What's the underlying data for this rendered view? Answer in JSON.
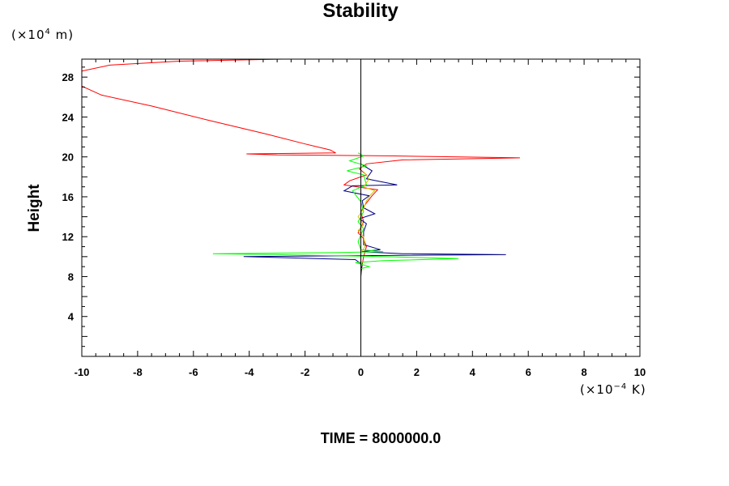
{
  "chart_data": {
    "type": "line",
    "title": "Stability",
    "ylabel": "Height",
    "y_unit_prefix": "(×10",
    "y_unit_exp": "4",
    "y_unit_suffix": " m)",
    "x_unit_prefix": "(×10",
    "x_unit_exp": "−4",
    "x_unit_suffix": " K)",
    "footer": "TIME = 8000000.0",
    "xlim": [
      -10,
      10
    ],
    "ylim": [
      0,
      29.8
    ],
    "x_ticks": [
      -10,
      -8,
      -6,
      -4,
      -2,
      0,
      2,
      4,
      6,
      8,
      10
    ],
    "y_ticks": [
      4,
      8,
      12,
      16,
      20,
      24,
      28
    ],
    "grid": false,
    "zero_line": true,
    "series": [
      {
        "color": "#ff0000",
        "points": [
          [
            0,
            6
          ],
          [
            0,
            8
          ],
          [
            0.05,
            9.2
          ],
          [
            0.1,
            10
          ],
          [
            0.2,
            11
          ],
          [
            0.1,
            11.8
          ],
          [
            -0.1,
            12.4
          ],
          [
            0.1,
            13.5
          ],
          [
            0,
            14.5
          ],
          [
            0.15,
            15.2
          ],
          [
            0.4,
            16.1
          ],
          [
            0.6,
            16.7
          ],
          [
            0.1,
            16.9
          ],
          [
            -0.6,
            17.2
          ],
          [
            -0.4,
            17.6
          ],
          [
            0.2,
            18.2
          ],
          [
            -0.05,
            18.8
          ],
          [
            0.2,
            19.3
          ],
          [
            1.5,
            19.7
          ],
          [
            5.7,
            19.9
          ],
          [
            1.2,
            20.1
          ],
          [
            -3,
            20.2
          ],
          [
            -4.1,
            20.3
          ],
          [
            -0.9,
            20.4
          ],
          [
            -1.1,
            20.7
          ],
          [
            -2.0,
            21.3
          ],
          [
            -3.4,
            22.3
          ],
          [
            -5.5,
            23.7
          ],
          [
            -7.5,
            25.1
          ],
          [
            -9.3,
            26.2
          ],
          [
            -10,
            27.1
          ],
          [
            -10,
            28.6
          ],
          [
            -9.0,
            29.2
          ],
          [
            -6.5,
            29.6
          ],
          [
            -2.8,
            29.8
          ]
        ]
      },
      {
        "color": "#000080",
        "points": [
          [
            0,
            8.5
          ],
          [
            0.05,
            9.2
          ],
          [
            -0.2,
            9.7
          ],
          [
            -4.2,
            10.0
          ],
          [
            0,
            10.1
          ],
          [
            5.2,
            10.2
          ],
          [
            1.5,
            10.3
          ],
          [
            0,
            10.5
          ],
          [
            0.7,
            10.7
          ],
          [
            0.1,
            11.2
          ],
          [
            0.1,
            12.5
          ],
          [
            0.2,
            13.3
          ],
          [
            -0.05,
            13.8
          ],
          [
            0.5,
            14.3
          ],
          [
            0.1,
            14.9
          ],
          [
            0.05,
            15.6
          ],
          [
            0.3,
            16.1
          ],
          [
            -0.6,
            16.6
          ],
          [
            -0.3,
            17.1
          ],
          [
            1.3,
            17.2
          ],
          [
            0.2,
            17.8
          ],
          [
            0.4,
            18.6
          ],
          [
            0,
            19.3
          ],
          [
            0,
            20.3
          ]
        ]
      },
      {
        "color": "#00ff00",
        "points": [
          [
            0,
            8.8
          ],
          [
            0.3,
            9.0
          ],
          [
            -0.2,
            9.4
          ],
          [
            0.8,
            9.6
          ],
          [
            3.5,
            9.8
          ],
          [
            0.8,
            10.0
          ],
          [
            -3,
            10.2
          ],
          [
            -5.3,
            10.3
          ],
          [
            -1,
            10.4
          ],
          [
            0.8,
            10.5
          ],
          [
            0,
            10.7
          ],
          [
            -0.1,
            11.5
          ],
          [
            0,
            12.2
          ],
          [
            0.1,
            12.8
          ],
          [
            -0.1,
            13.5
          ],
          [
            0.1,
            14.5
          ],
          [
            0,
            15.5
          ],
          [
            -0.3,
            16.6
          ],
          [
            0.2,
            17.2
          ],
          [
            0.1,
            18.2
          ],
          [
            -0.5,
            18.6
          ],
          [
            0.2,
            19.1
          ],
          [
            -0.4,
            19.6
          ],
          [
            0.1,
            20.1
          ],
          [
            -0.1,
            20.4
          ]
        ]
      },
      {
        "color": "#c8c800",
        "points": [
          [
            0,
            10.4
          ],
          [
            0.15,
            11.0
          ],
          [
            0.1,
            12.0
          ],
          [
            -0.1,
            12.6
          ],
          [
            0.1,
            13.2
          ],
          [
            -0.1,
            14.0
          ],
          [
            0.1,
            14.8
          ],
          [
            0.2,
            15.6
          ],
          [
            0.35,
            16.2
          ],
          [
            0.5,
            16.6
          ],
          [
            0.1,
            17.0
          ],
          [
            0.3,
            17.8
          ],
          [
            0.1,
            18.5
          ]
        ]
      }
    ]
  }
}
